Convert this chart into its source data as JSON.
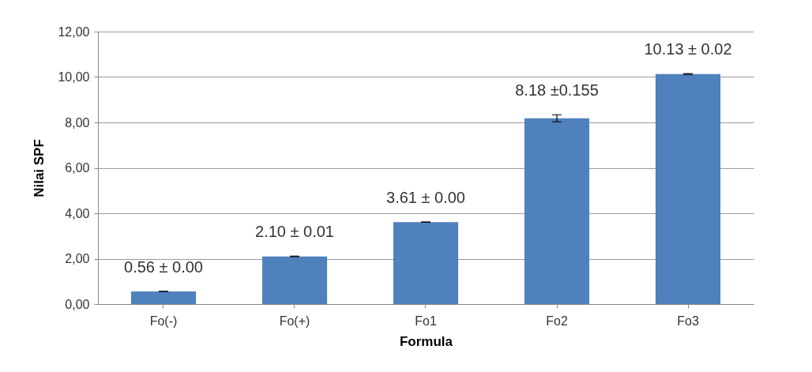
{
  "chart_data": {
    "type": "bar",
    "xlabel": "Formula",
    "ylabel": "Nilai SPF",
    "categories": [
      "Fo(-)",
      "Fo(+)",
      "Fo1",
      "Fo2",
      "Fo3"
    ],
    "values": [
      0.56,
      2.1,
      3.61,
      8.18,
      10.13
    ],
    "errors": [
      0,
      0.01,
      0,
      0.155,
      0.02
    ],
    "value_labels": [
      "0.56 ± 0.00",
      "2.10 ± 0.01",
      "3.61 ± 0.00",
      "8.18 ±0.155",
      "10.13 ± 0.02"
    ],
    "color": "#4f81bd",
    "ylim": [
      0,
      12
    ],
    "yticks": [
      {
        "value": 0,
        "label": "0,00"
      },
      {
        "value": 2,
        "label": "2,00"
      },
      {
        "value": 4,
        "label": "4,00"
      },
      {
        "value": 6,
        "label": "6,00"
      },
      {
        "value": 8,
        "label": "8,00"
      },
      {
        "value": 10,
        "label": "10,00"
      },
      {
        "value": 12,
        "label": "12,00"
      }
    ],
    "grid": "y"
  }
}
